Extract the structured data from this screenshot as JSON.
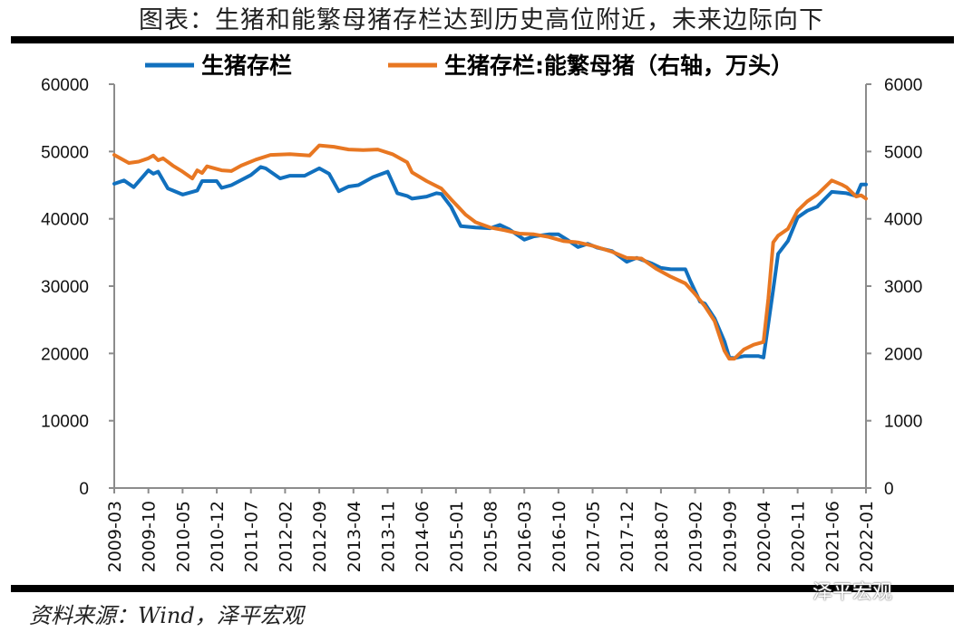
{
  "title": "图表：生猪和能繁母猪存栏达到历史高位附近，未来边际向下",
  "source": "资料来源：Wind，泽平宏观",
  "watermark": "泽平宏观",
  "chart_data": {
    "type": "line",
    "title": "",
    "x_ticks": [
      "2009-03",
      "2009-10",
      "2010-05",
      "2010-12",
      "2011-07",
      "2012-02",
      "2012-09",
      "2013-04",
      "2013-11",
      "2014-06",
      "2015-01",
      "2015-08",
      "2016-03",
      "2016-10",
      "2017-05",
      "2017-12",
      "2018-07",
      "2019-02",
      "2019-09",
      "2020-04",
      "2020-11",
      "2021-06",
      "2022-01"
    ],
    "y_left": {
      "range": [
        0,
        60000
      ],
      "ticks": [
        0,
        10000,
        20000,
        30000,
        40000,
        50000,
        60000
      ]
    },
    "y_right": {
      "range": [
        0,
        6000
      ],
      "ticks": [
        0,
        1000,
        2000,
        3000,
        4000,
        5000,
        6000
      ]
    },
    "grid": false,
    "legend_position": "top",
    "series": [
      {
        "name": "生猪存栏",
        "axis": "left",
        "color": "#1170BE",
        "points": [
          [
            "2009-03",
            45200
          ],
          [
            "2009-05",
            45700
          ],
          [
            "2009-07",
            44700
          ],
          [
            "2009-10",
            47200
          ],
          [
            "2009-11",
            46700
          ],
          [
            "2009-12",
            47000
          ],
          [
            "2010-02",
            44500
          ],
          [
            "2010-03",
            44200
          ],
          [
            "2010-05",
            43600
          ],
          [
            "2010-08",
            44200
          ],
          [
            "2010-09",
            45600
          ],
          [
            "2010-12",
            45600
          ],
          [
            "2011-01",
            44600
          ],
          [
            "2011-03",
            45000
          ],
          [
            "2011-07",
            46500
          ],
          [
            "2011-09",
            47700
          ],
          [
            "2011-10",
            47500
          ],
          [
            "2012-01",
            46000
          ],
          [
            "2012-02",
            46200
          ],
          [
            "2012-03",
            46400
          ],
          [
            "2012-06",
            46400
          ],
          [
            "2012-09",
            47500
          ],
          [
            "2012-11",
            46700
          ],
          [
            "2013-01",
            44100
          ],
          [
            "2013-03",
            44800
          ],
          [
            "2013-05",
            45000
          ],
          [
            "2013-08",
            46200
          ],
          [
            "2013-11",
            47000
          ],
          [
            "2014-01",
            43800
          ],
          [
            "2014-03",
            43400
          ],
          [
            "2014-04",
            43000
          ],
          [
            "2014-07",
            43300
          ],
          [
            "2014-09",
            43800
          ],
          [
            "2014-10",
            43700
          ],
          [
            "2014-12",
            41800
          ],
          [
            "2015-02",
            38900
          ],
          [
            "2015-05",
            38700
          ],
          [
            "2015-08",
            38600
          ],
          [
            "2015-10",
            39100
          ],
          [
            "2015-12",
            38400
          ],
          [
            "2016-03",
            36900
          ],
          [
            "2016-05",
            37400
          ],
          [
            "2016-08",
            37700
          ],
          [
            "2016-10",
            37700
          ],
          [
            "2016-12",
            36800
          ],
          [
            "2017-02",
            35800
          ],
          [
            "2017-04",
            36300
          ],
          [
            "2017-06",
            35700
          ],
          [
            "2017-09",
            35200
          ],
          [
            "2017-12",
            33600
          ],
          [
            "2018-02",
            34200
          ],
          [
            "2018-05",
            33400
          ],
          [
            "2018-07",
            32700
          ],
          [
            "2018-09",
            32500
          ],
          [
            "2018-12",
            32500
          ],
          [
            "2019-01",
            30800
          ],
          [
            "2019-03",
            27700
          ],
          [
            "2019-04",
            27400
          ],
          [
            "2019-06",
            25200
          ],
          [
            "2019-08",
            21800
          ],
          [
            "2019-09",
            19400
          ],
          [
            "2019-10",
            19300
          ],
          [
            "2019-12",
            19600
          ],
          [
            "2020-03",
            19600
          ],
          [
            "2020-04",
            19400
          ],
          [
            "2020-06",
            29500
          ],
          [
            "2020-07",
            34800
          ],
          [
            "2020-09",
            36700
          ],
          [
            "2020-11",
            40200
          ],
          [
            "2021-01",
            41200
          ],
          [
            "2021-03",
            41800
          ],
          [
            "2021-06",
            44000
          ],
          [
            "2021-09",
            43800
          ],
          [
            "2021-11",
            43400
          ],
          [
            "2021-12",
            45100
          ],
          [
            "2022-01",
            45100
          ]
        ]
      },
      {
        "name": "生猪存栏:能繁母猪（右轴，万头）",
        "axis": "right",
        "color": "#E87722",
        "points": [
          [
            "2009-03",
            4950
          ],
          [
            "2009-06",
            4830
          ],
          [
            "2009-08",
            4850
          ],
          [
            "2009-10",
            4900
          ],
          [
            "2009-11",
            4940
          ],
          [
            "2009-12",
            4870
          ],
          [
            "2010-01",
            4900
          ],
          [
            "2010-03",
            4790
          ],
          [
            "2010-05",
            4700
          ],
          [
            "2010-07",
            4600
          ],
          [
            "2010-08",
            4720
          ],
          [
            "2010-09",
            4680
          ],
          [
            "2010-10",
            4780
          ],
          [
            "2011-01",
            4720
          ],
          [
            "2011-03",
            4710
          ],
          [
            "2011-05",
            4790
          ],
          [
            "2011-08",
            4880
          ],
          [
            "2011-11",
            4950
          ],
          [
            "2012-03",
            4960
          ],
          [
            "2012-07",
            4940
          ],
          [
            "2012-09",
            5090
          ],
          [
            "2012-12",
            5070
          ],
          [
            "2013-03",
            5030
          ],
          [
            "2013-06",
            5020
          ],
          [
            "2013-09",
            5030
          ],
          [
            "2013-12",
            4960
          ],
          [
            "2014-03",
            4840
          ],
          [
            "2014-04",
            4690
          ],
          [
            "2014-07",
            4560
          ],
          [
            "2014-10",
            4450
          ],
          [
            "2014-12",
            4290
          ],
          [
            "2015-03",
            4060
          ],
          [
            "2015-05",
            3950
          ],
          [
            "2015-08",
            3870
          ],
          [
            "2015-11",
            3830
          ],
          [
            "2016-02",
            3780
          ],
          [
            "2016-05",
            3770
          ],
          [
            "2016-08",
            3730
          ],
          [
            "2016-11",
            3670
          ],
          [
            "2017-02",
            3650
          ],
          [
            "2017-05",
            3600
          ],
          [
            "2017-09",
            3510
          ],
          [
            "2017-12",
            3420
          ],
          [
            "2018-03",
            3410
          ],
          [
            "2018-06",
            3260
          ],
          [
            "2018-09",
            3140
          ],
          [
            "2018-12",
            3040
          ],
          [
            "2019-02",
            2880
          ],
          [
            "2019-04",
            2700
          ],
          [
            "2019-06",
            2480
          ],
          [
            "2019-08",
            2040
          ],
          [
            "2019-09",
            1920
          ],
          [
            "2019-10",
            1920
          ],
          [
            "2019-12",
            2060
          ],
          [
            "2020-02",
            2130
          ],
          [
            "2020-04",
            2170
          ],
          [
            "2020-05",
            2810
          ],
          [
            "2020-06",
            3650
          ],
          [
            "2020-07",
            3750
          ],
          [
            "2020-09",
            3850
          ],
          [
            "2020-11",
            4120
          ],
          [
            "2021-01",
            4260
          ],
          [
            "2021-03",
            4360
          ],
          [
            "2021-06",
            4570
          ],
          [
            "2021-08",
            4510
          ],
          [
            "2021-09",
            4470
          ],
          [
            "2021-11",
            4330
          ],
          [
            "2021-12",
            4350
          ],
          [
            "2022-01",
            4300
          ]
        ]
      }
    ]
  }
}
